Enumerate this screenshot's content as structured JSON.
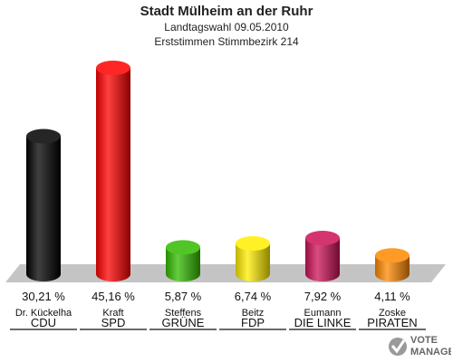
{
  "header": {
    "title": "Stadt Mülheim an der Ruhr",
    "subtitle": "Landtagswahl 09.05.2010",
    "subtitle2": "Erststimmen Stimmbezirk 214"
  },
  "chart_data": {
    "type": "bar",
    "title": "Stadt Mülheim an der Ruhr",
    "subtitle": "Landtagswahl 09.05.2010",
    "subtitle2": "Erststimmen Stimmbezirk 214",
    "categories": [
      "CDU",
      "SPD",
      "GRÜNE",
      "FDP",
      "DIE LINKE",
      "PIRATEN"
    ],
    "candidates": [
      "Dr. Kückelha",
      "Kraft",
      "Steffens",
      "Beitz",
      "Eumann",
      "Zoske"
    ],
    "values": [
      30.21,
      45.16,
      5.87,
      6.74,
      7.92,
      4.11
    ],
    "value_labels": [
      "30,21 %",
      "45,16 %",
      "5,87 %",
      "6,74 %",
      "7,92 %",
      "4,11 %"
    ],
    "colors": [
      "#000000",
      "#ff0000",
      "#33bb00",
      "#ffee00",
      "#cc1155",
      "#ff8800"
    ],
    "ylim": [
      0,
      45.16
    ],
    "grid": false,
    "legend": "none"
  },
  "logo": {
    "line1": "VOTE",
    "line2": "MANAGER"
  }
}
